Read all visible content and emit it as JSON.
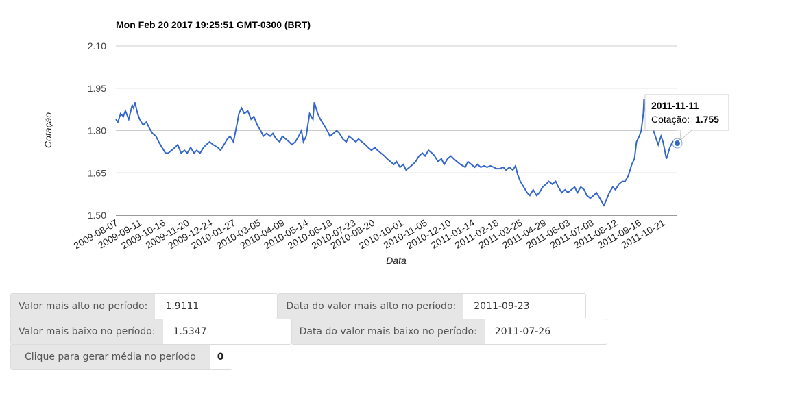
{
  "chart_data": {
    "type": "line",
    "title": "Mon Feb 20 2017 19:25:51 GMT-0300 (BRT)",
    "xlabel": "Data",
    "ylabel": "Cotação",
    "ylim": [
      1.5,
      2.1
    ],
    "yticks": [
      "1.50",
      "1.65",
      "1.80",
      "1.95",
      "2.10"
    ],
    "grid": true,
    "legend": "none",
    "x_ticks": [
      "2009-08-07",
      "2009-09-11",
      "2009-10-16",
      "2009-11-20",
      "2009-12-24",
      "2010-01-27",
      "2010-03-05",
      "2010-04-09",
      "2010-05-14",
      "2010-06-18",
      "2010-07-23",
      "2010-08-20",
      "2010-10-01",
      "2010-11-05",
      "2010-12-10",
      "2011-01-14",
      "2011-02-18",
      "2011-03-25",
      "2011-04-29",
      "2011-06-03",
      "2011-07-08",
      "2011-08-12",
      "2011-09-16",
      "2011-10-21"
    ],
    "x_start": "2009-08-07",
    "x_end": "2011-11-11",
    "series": [
      {
        "color": "#3366cc",
        "points": [
          [
            "2009-08-07",
            1.84
          ],
          [
            "2009-08-10",
            1.83
          ],
          [
            "2009-08-14",
            1.86
          ],
          [
            "2009-08-18",
            1.85
          ],
          [
            "2009-08-21",
            1.87
          ],
          [
            "2009-08-26",
            1.84
          ],
          [
            "2009-08-31",
            1.89
          ],
          [
            "2009-09-02",
            1.88
          ],
          [
            "2009-09-04",
            1.9
          ],
          [
            "2009-09-08",
            1.86
          ],
          [
            "2009-09-11",
            1.84
          ],
          [
            "2009-09-16",
            1.82
          ],
          [
            "2009-09-21",
            1.83
          ],
          [
            "2009-09-25",
            1.81
          ],
          [
            "2009-09-30",
            1.79
          ],
          [
            "2009-10-05",
            1.78
          ],
          [
            "2009-10-09",
            1.76
          ],
          [
            "2009-10-14",
            1.74
          ],
          [
            "2009-10-19",
            1.72
          ],
          [
            "2009-10-23",
            1.72
          ],
          [
            "2009-10-28",
            1.73
          ],
          [
            "2009-11-02",
            1.74
          ],
          [
            "2009-11-06",
            1.75
          ],
          [
            "2009-11-11",
            1.72
          ],
          [
            "2009-11-16",
            1.73
          ],
          [
            "2009-11-20",
            1.72
          ],
          [
            "2009-11-25",
            1.74
          ],
          [
            "2009-11-30",
            1.72
          ],
          [
            "2009-12-04",
            1.73
          ],
          [
            "2009-12-09",
            1.72
          ],
          [
            "2009-12-14",
            1.74
          ],
          [
            "2009-12-18",
            1.75
          ],
          [
            "2009-12-23",
            1.76
          ],
          [
            "2009-12-28",
            1.75
          ],
          [
            "2010-01-04",
            1.74
          ],
          [
            "2010-01-08",
            1.73
          ],
          [
            "2010-01-13",
            1.75
          ],
          [
            "2010-01-18",
            1.77
          ],
          [
            "2010-01-22",
            1.78
          ],
          [
            "2010-01-27",
            1.76
          ],
          [
            "2010-02-01",
            1.82
          ],
          [
            "2010-02-04",
            1.86
          ],
          [
            "2010-02-08",
            1.88
          ],
          [
            "2010-02-12",
            1.86
          ],
          [
            "2010-02-17",
            1.87
          ],
          [
            "2010-02-22",
            1.84
          ],
          [
            "2010-02-26",
            1.85
          ],
          [
            "2010-03-03",
            1.82
          ],
          [
            "2010-03-08",
            1.8
          ],
          [
            "2010-03-12",
            1.78
          ],
          [
            "2010-03-17",
            1.79
          ],
          [
            "2010-03-22",
            1.78
          ],
          [
            "2010-03-26",
            1.79
          ],
          [
            "2010-03-31",
            1.77
          ],
          [
            "2010-04-05",
            1.76
          ],
          [
            "2010-04-09",
            1.78
          ],
          [
            "2010-04-14",
            1.77
          ],
          [
            "2010-04-19",
            1.76
          ],
          [
            "2010-04-23",
            1.75
          ],
          [
            "2010-04-28",
            1.76
          ],
          [
            "2010-05-03",
            1.78
          ],
          [
            "2010-05-07",
            1.8
          ],
          [
            "2010-05-10",
            1.76
          ],
          [
            "2010-05-14",
            1.78
          ],
          [
            "2010-05-19",
            1.86
          ],
          [
            "2010-05-24",
            1.84
          ],
          [
            "2010-05-26",
            1.9
          ],
          [
            "2010-05-31",
            1.86
          ],
          [
            "2010-06-04",
            1.84
          ],
          [
            "2010-06-09",
            1.82
          ],
          [
            "2010-06-14",
            1.8
          ],
          [
            "2010-06-18",
            1.78
          ],
          [
            "2010-06-23",
            1.79
          ],
          [
            "2010-06-28",
            1.8
          ],
          [
            "2010-07-02",
            1.79
          ],
          [
            "2010-07-07",
            1.77
          ],
          [
            "2010-07-12",
            1.76
          ],
          [
            "2010-07-16",
            1.78
          ],
          [
            "2010-07-21",
            1.77
          ],
          [
            "2010-07-26",
            1.76
          ],
          [
            "2010-07-30",
            1.77
          ],
          [
            "2010-08-04",
            1.76
          ],
          [
            "2010-08-09",
            1.75
          ],
          [
            "2010-08-13",
            1.74
          ],
          [
            "2010-08-18",
            1.73
          ],
          [
            "2010-08-23",
            1.74
          ],
          [
            "2010-08-27",
            1.73
          ],
          [
            "2010-09-01",
            1.72
          ],
          [
            "2010-09-06",
            1.71
          ],
          [
            "2010-09-10",
            1.7
          ],
          [
            "2010-09-15",
            1.69
          ],
          [
            "2010-09-20",
            1.68
          ],
          [
            "2010-09-24",
            1.69
          ],
          [
            "2010-09-29",
            1.67
          ],
          [
            "2010-10-04",
            1.68
          ],
          [
            "2010-10-08",
            1.66
          ],
          [
            "2010-10-13",
            1.67
          ],
          [
            "2010-10-18",
            1.68
          ],
          [
            "2010-10-22",
            1.69
          ],
          [
            "2010-10-27",
            1.71
          ],
          [
            "2010-11-01",
            1.72
          ],
          [
            "2010-11-05",
            1.71
          ],
          [
            "2010-11-10",
            1.73
          ],
          [
            "2010-11-15",
            1.72
          ],
          [
            "2010-11-19",
            1.71
          ],
          [
            "2010-11-24",
            1.69
          ],
          [
            "2010-11-29",
            1.7
          ],
          [
            "2010-12-03",
            1.68
          ],
          [
            "2010-12-08",
            1.7
          ],
          [
            "2010-12-13",
            1.71
          ],
          [
            "2010-12-17",
            1.7
          ],
          [
            "2010-12-22",
            1.69
          ],
          [
            "2010-12-27",
            1.68
          ],
          [
            "2011-01-03",
            1.67
          ],
          [
            "2011-01-07",
            1.69
          ],
          [
            "2011-01-12",
            1.68
          ],
          [
            "2011-01-17",
            1.67
          ],
          [
            "2011-01-21",
            1.68
          ],
          [
            "2011-01-26",
            1.67
          ],
          [
            "2011-01-31",
            1.675
          ],
          [
            "2011-02-04",
            1.67
          ],
          [
            "2011-02-09",
            1.675
          ],
          [
            "2011-02-14",
            1.67
          ],
          [
            "2011-02-18",
            1.665
          ],
          [
            "2011-02-23",
            1.665
          ],
          [
            "2011-02-28",
            1.67
          ],
          [
            "2011-03-04",
            1.66
          ],
          [
            "2011-03-09",
            1.67
          ],
          [
            "2011-03-14",
            1.66
          ],
          [
            "2011-03-18",
            1.675
          ],
          [
            "2011-03-21",
            1.645
          ],
          [
            "2011-03-25",
            1.62
          ],
          [
            "2011-03-30",
            1.6
          ],
          [
            "2011-04-04",
            1.58
          ],
          [
            "2011-04-08",
            1.57
          ],
          [
            "2011-04-13",
            1.59
          ],
          [
            "2011-04-18",
            1.57
          ],
          [
            "2011-04-22",
            1.58
          ],
          [
            "2011-04-27",
            1.6
          ],
          [
            "2011-05-02",
            1.61
          ],
          [
            "2011-05-06",
            1.62
          ],
          [
            "2011-05-11",
            1.61
          ],
          [
            "2011-05-16",
            1.62
          ],
          [
            "2011-05-20",
            1.6
          ],
          [
            "2011-05-25",
            1.58
          ],
          [
            "2011-05-30",
            1.59
          ],
          [
            "2011-06-03",
            1.58
          ],
          [
            "2011-06-08",
            1.59
          ],
          [
            "2011-06-13",
            1.6
          ],
          [
            "2011-06-17",
            1.58
          ],
          [
            "2011-06-22",
            1.6
          ],
          [
            "2011-06-27",
            1.59
          ],
          [
            "2011-07-01",
            1.57
          ],
          [
            "2011-07-06",
            1.56
          ],
          [
            "2011-07-11",
            1.57
          ],
          [
            "2011-07-15",
            1.58
          ],
          [
            "2011-07-20",
            1.56
          ],
          [
            "2011-07-26",
            1.5347
          ],
          [
            "2011-07-29",
            1.55
          ],
          [
            "2011-08-03",
            1.58
          ],
          [
            "2011-08-08",
            1.6
          ],
          [
            "2011-08-12",
            1.59
          ],
          [
            "2011-08-17",
            1.61
          ],
          [
            "2011-08-22",
            1.62
          ],
          [
            "2011-08-26",
            1.62
          ],
          [
            "2011-08-31",
            1.64
          ],
          [
            "2011-09-05",
            1.68
          ],
          [
            "2011-09-09",
            1.7
          ],
          [
            "2011-09-12",
            1.76
          ],
          [
            "2011-09-16",
            1.78
          ],
          [
            "2011-09-19",
            1.8
          ],
          [
            "2011-09-22",
            1.86
          ],
          [
            "2011-09-23",
            1.9111
          ],
          [
            "2011-09-26",
            1.84
          ],
          [
            "2011-09-28",
            1.8
          ],
          [
            "2011-09-30",
            1.86
          ],
          [
            "2011-10-03",
            1.88
          ],
          [
            "2011-10-05",
            1.84
          ],
          [
            "2011-10-07",
            1.8
          ],
          [
            "2011-10-11",
            1.77
          ],
          [
            "2011-10-14",
            1.75
          ],
          [
            "2011-10-18",
            1.78
          ],
          [
            "2011-10-21",
            1.76
          ],
          [
            "2011-10-26",
            1.7
          ],
          [
            "2011-10-31",
            1.74
          ],
          [
            "2011-11-04",
            1.76
          ],
          [
            "2011-11-11",
            1.755
          ]
        ]
      }
    ],
    "tooltip": {
      "date": "2011-11-11",
      "label": "Cotação:",
      "value": "1.755"
    }
  },
  "stats": {
    "max_label": "Valor mais alto no período:",
    "max_value": "1.9111",
    "max_date_label": "Data do valor mais alto no período:",
    "max_date_value": "2011-09-23",
    "min_label": "Valor mais baixo no período:",
    "min_value": "1.5347",
    "min_date_label": "Data do valor mais baixo no período:",
    "min_date_value": "2011-07-26",
    "avg_label": "Clique para gerar média no período",
    "avg_value": "0"
  }
}
